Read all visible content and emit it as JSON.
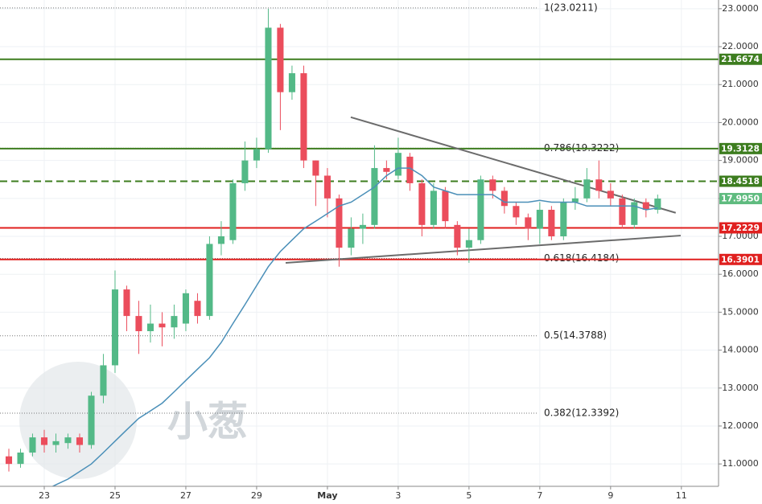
{
  "chart_data": {
    "type": "candlestick",
    "watermark": "小葱",
    "x": [
      0,
      0.33,
      0.67,
      1,
      1.33,
      1.67,
      2,
      2.33,
      2.67,
      3,
      3.33,
      3.67,
      4,
      4.33,
      4.67,
      5,
      5.33,
      5.67,
      6,
      6.33,
      6.67,
      7,
      7.33,
      7.67,
      8,
      8.33,
      8.67,
      9,
      9.33,
      9.67,
      10,
      10.33,
      10.67,
      11,
      11.33,
      11.67,
      12,
      12.33,
      12.67,
      13,
      13.33,
      13.67,
      14,
      14.33,
      14.67,
      15,
      15.33,
      15.67,
      16,
      16.33,
      16.67,
      17,
      17.33,
      17.67,
      18,
      18.33
    ],
    "open": [
      11.2,
      11.0,
      11.3,
      11.7,
      11.5,
      11.55,
      11.7,
      11.5,
      12.8,
      13.6,
      15.6,
      14.9,
      14.5,
      14.7,
      14.6,
      14.7,
      15.3,
      14.9,
      16.8,
      16.9,
      18.4,
      19.0,
      19.3,
      22.5,
      20.8,
      21.3,
      19.0,
      18.6,
      18.0,
      16.7,
      17.2,
      17.3,
      18.8,
      18.6,
      19.1,
      18.4,
      17.3,
      18.2,
      17.3,
      16.7,
      16.9,
      18.5,
      18.2,
      17.8,
      17.5,
      17.2,
      17.7,
      17.0,
      17.9,
      18.0,
      18.5,
      18.2,
      18.0,
      17.3,
      17.9,
      17.7
    ],
    "high": [
      11.4,
      11.4,
      11.8,
      11.9,
      11.8,
      11.8,
      11.8,
      12.9,
      13.9,
      16.1,
      15.7,
      15.3,
      15.2,
      15.0,
      15.2,
      15.6,
      15.5,
      17.0,
      17.4,
      18.5,
      19.5,
      19.6,
      23.0,
      22.6,
      21.5,
      21.5,
      19.0,
      18.8,
      18.1,
      17.5,
      17.6,
      19.4,
      19.0,
      19.6,
      19.2,
      18.5,
      18.4,
      18.3,
      17.4,
      17.2,
      18.6,
      18.6,
      18.3,
      17.9,
      17.6,
      17.9,
      17.8,
      18.0,
      18.3,
      18.8,
      19.0,
      18.4,
      18.1,
      18.0,
      18.0,
      18.1
    ],
    "low": [
      10.8,
      10.9,
      11.2,
      11.3,
      11.3,
      11.4,
      11.3,
      11.4,
      12.6,
      13.4,
      14.5,
      13.9,
      14.2,
      14.1,
      14.3,
      14.5,
      14.7,
      14.8,
      16.5,
      16.8,
      18.2,
      18.8,
      19.2,
      19.8,
      20.6,
      18.8,
      17.8,
      17.5,
      16.2,
      16.5,
      16.8,
      17.2,
      18.5,
      18.5,
      18.2,
      17.0,
      17.2,
      17.2,
      16.5,
      16.3,
      16.8,
      18.0,
      17.6,
      17.3,
      16.9,
      16.8,
      16.9,
      16.9,
      17.7,
      17.9,
      18.0,
      17.8,
      17.2,
      17.2,
      17.5,
      17.6
    ],
    "close": [
      11.0,
      11.3,
      11.7,
      11.5,
      11.6,
      11.7,
      11.5,
      12.8,
      13.6,
      15.6,
      14.9,
      14.5,
      14.7,
      14.6,
      14.9,
      15.5,
      14.9,
      16.8,
      17.0,
      18.4,
      19.0,
      19.3,
      22.5,
      20.8,
      21.3,
      19.0,
      18.6,
      18.0,
      16.7,
      17.2,
      17.3,
      18.8,
      18.7,
      19.2,
      18.4,
      17.3,
      18.2,
      17.4,
      16.7,
      16.9,
      18.5,
      18.2,
      17.8,
      17.5,
      17.2,
      17.7,
      17.0,
      17.9,
      18.0,
      18.5,
      18.2,
      18.0,
      17.3,
      17.9,
      17.7,
      17.995
    ],
    "ma": [
      10.0,
      10.1,
      10.2,
      10.3,
      10.45,
      10.6,
      10.8,
      11.0,
      11.3,
      11.6,
      11.9,
      12.2,
      12.4,
      12.6,
      12.9,
      13.2,
      13.5,
      13.8,
      14.2,
      14.7,
      15.2,
      15.7,
      16.2,
      16.6,
      16.9,
      17.2,
      17.4,
      17.6,
      17.8,
      17.9,
      18.1,
      18.3,
      18.6,
      18.8,
      18.8,
      18.6,
      18.3,
      18.2,
      18.1,
      18.1,
      18.1,
      18.1,
      17.9,
      17.9,
      17.9,
      17.95,
      17.9,
      17.9,
      17.9,
      17.8,
      17.8,
      17.8,
      17.8,
      17.8,
      17.7,
      17.75
    ],
    "up_color": "#53b987",
    "down_color": "#eb4d5c",
    "ma_color": "#4a8fb8",
    "xlim": [
      -0.25,
      20.05
    ],
    "xticks": [
      {
        "value": 1,
        "label": "23"
      },
      {
        "value": 3,
        "label": "25"
      },
      {
        "value": 5,
        "label": "27"
      },
      {
        "value": 7,
        "label": "29"
      },
      {
        "value": 9,
        "label": "May"
      },
      {
        "value": 11,
        "label": "3"
      },
      {
        "value": 13,
        "label": "5"
      },
      {
        "value": 15,
        "label": "7"
      },
      {
        "value": 17,
        "label": "9"
      },
      {
        "value": 19,
        "label": "11"
      }
    ],
    "ylim": [
      10.41,
      23.23
    ],
    "yticks": [
      {
        "value": 11,
        "label": "11.0000"
      },
      {
        "value": 12,
        "label": "12.0000"
      },
      {
        "value": 13,
        "label": "13.0000"
      },
      {
        "value": 14,
        "label": "14.0000"
      },
      {
        "value": 15,
        "label": "15.0000"
      },
      {
        "value": 16,
        "label": "16.0000"
      },
      {
        "value": 17,
        "label": "17.0000"
      },
      {
        "value": 18,
        "label": "18.0000"
      },
      {
        "value": 19,
        "label": "19.0000"
      },
      {
        "value": 20,
        "label": "20.0000"
      },
      {
        "value": 21,
        "label": "21.0000"
      },
      {
        "value": 22,
        "label": "22.0000"
      },
      {
        "value": 23,
        "label": "23.0000"
      }
    ],
    "grid": true,
    "levels": [
      {
        "value": 21.6674,
        "color": "#3d7d1f",
        "style": "solid"
      },
      {
        "value": 19.3128,
        "color": "#3d7d1f",
        "style": "solid"
      },
      {
        "value": 18.4518,
        "color": "#3d7d1f",
        "style": "dashed"
      },
      {
        "value": 17.2229,
        "color": "#e0201f",
        "style": "solid"
      },
      {
        "value": 16.3901,
        "color": "#e0201f",
        "style": "solid"
      }
    ],
    "last_price": {
      "value": 17.995,
      "label": "17.9950",
      "color": "#5fbb7f"
    },
    "fib": [
      {
        "value": 23.0211,
        "label": "1(23.0211)"
      },
      {
        "value": 19.3222,
        "label": "0.786(19.3222)"
      },
      {
        "value": 16.4184,
        "label": "0.618(16.4184)"
      },
      {
        "value": 14.3788,
        "label": "0.5(14.3788)"
      },
      {
        "value": 12.3392,
        "label": "0.382(12.3392)"
      }
    ],
    "trendlines": [
      {
        "x": [
          9.66,
          18.84
        ],
        "y": [
          20.14,
          17.62
        ]
      },
      {
        "x": [
          7.82,
          18.98
        ],
        "y": [
          16.3,
          17.02
        ]
      }
    ]
  }
}
